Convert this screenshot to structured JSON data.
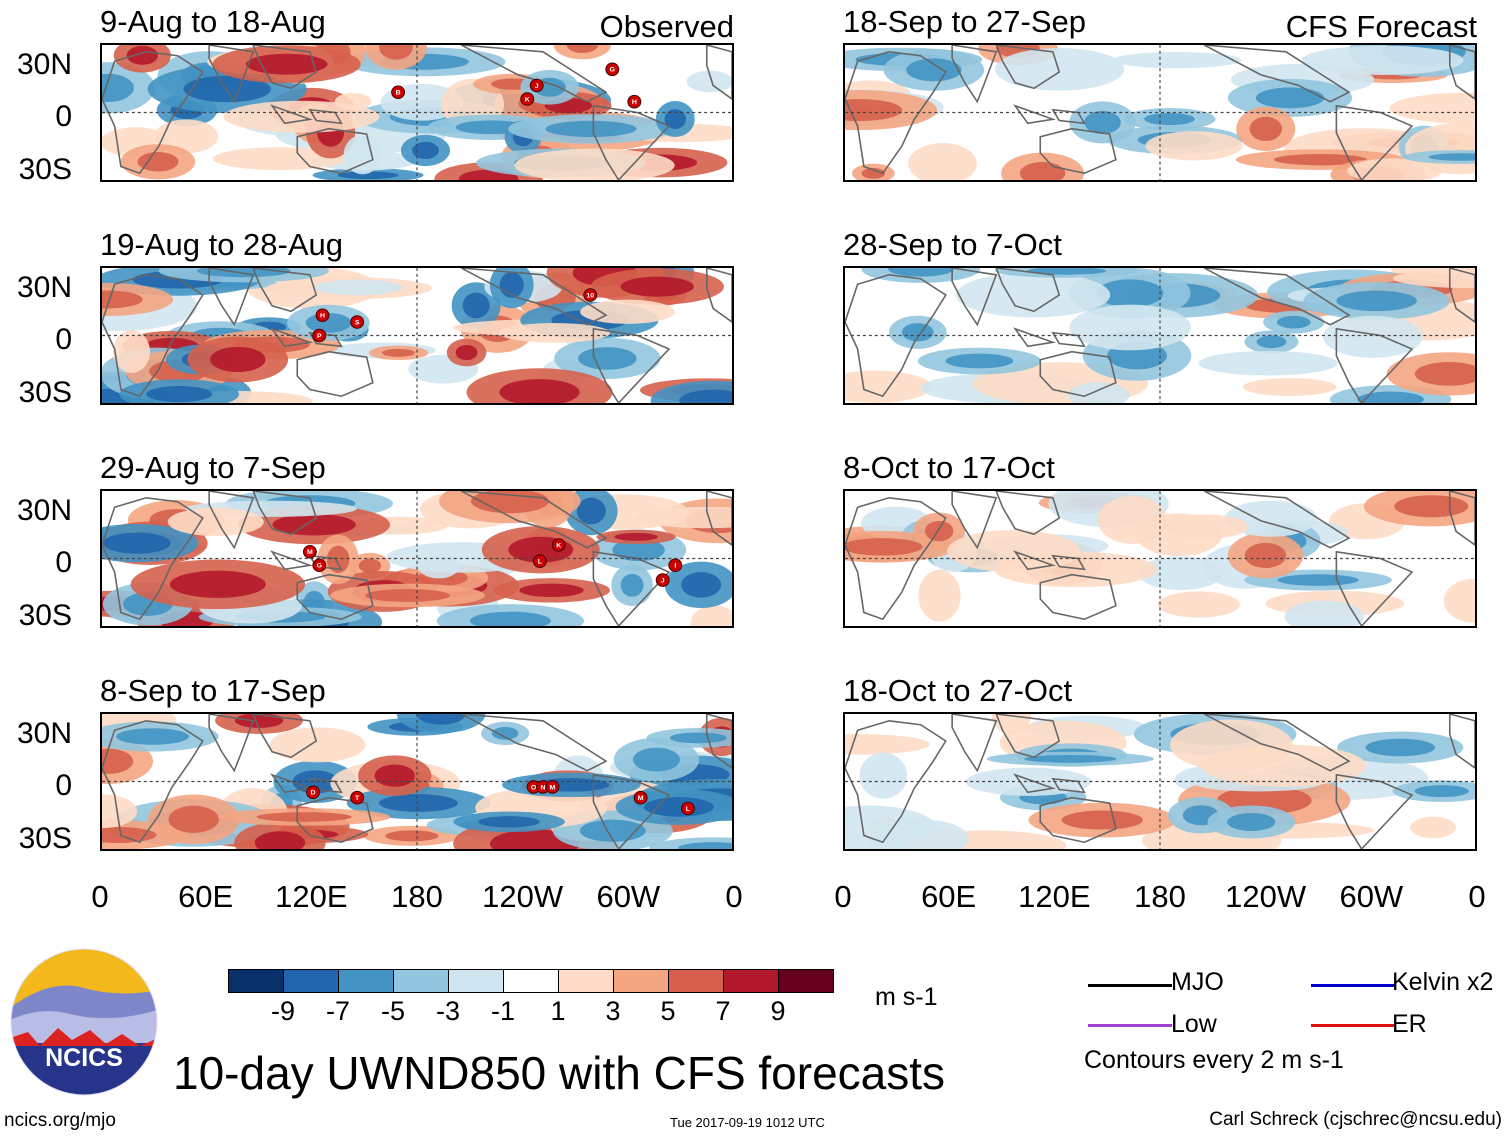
{
  "panels": [
    {
      "title": "9-Aug to 18-Aug",
      "tag": "Observed",
      "storms": [
        [
          "B",
          0.47,
          0.35
        ],
        [
          "K",
          0.675,
          0.4
        ],
        [
          "J",
          0.69,
          0.3
        ],
        [
          "G",
          0.81,
          0.18
        ],
        [
          "H",
          0.845,
          0.42
        ]
      ]
    },
    {
      "title": "19-Aug to 28-Aug",
      "tag": "",
      "storms": [
        [
          "H",
          0.35,
          0.35
        ],
        [
          "P",
          0.345,
          0.5
        ],
        [
          "S",
          0.405,
          0.4
        ],
        [
          "10",
          0.775,
          0.2
        ]
      ]
    },
    {
      "title": "29-Aug to 7-Sep",
      "tag": "",
      "storms": [
        [
          "M",
          0.33,
          0.45
        ],
        [
          "G",
          0.345,
          0.55
        ],
        [
          "L",
          0.695,
          0.52
        ],
        [
          "K",
          0.725,
          0.4
        ],
        [
          "J",
          0.89,
          0.66
        ],
        [
          "I",
          0.91,
          0.55
        ]
      ]
    },
    {
      "title": "8-Sep to 17-Sep",
      "tag": "",
      "storms": [
        [
          "D",
          0.335,
          0.58
        ],
        [
          "T",
          0.405,
          0.62
        ],
        [
          "O",
          0.685,
          0.54
        ],
        [
          "N",
          0.7,
          0.54
        ],
        [
          "M",
          0.715,
          0.54
        ],
        [
          "M",
          0.855,
          0.62
        ],
        [
          "L",
          0.93,
          0.7
        ]
      ]
    },
    {
      "title": "18-Sep to 27-Sep",
      "tag": "CFS Forecast",
      "storms": []
    },
    {
      "title": "28-Sep to 7-Oct",
      "tag": "",
      "storms": []
    },
    {
      "title": "8-Oct to 17-Oct",
      "tag": "",
      "storms": []
    },
    {
      "title": "18-Oct to 27-Oct",
      "tag": "",
      "storms": []
    }
  ],
  "lat_labels": [
    "30N",
    "0",
    "30S"
  ],
  "lon_labels": [
    "0",
    "60E",
    "120E",
    "180",
    "120W",
    "60W",
    "0"
  ],
  "colorbar": {
    "colors": [
      "#08306b",
      "#2166ac",
      "#4393c3",
      "#92c5de",
      "#d1e5f0",
      "#ffffff",
      "#fddbc7",
      "#f4a582",
      "#d6604d",
      "#b2182b",
      "#67001f"
    ],
    "ticks": [
      "-9",
      "-7",
      "-5",
      "-3",
      "-1",
      "1",
      "3",
      "5",
      "7",
      "9"
    ],
    "unit": "m s-1"
  },
  "legend": {
    "items": [
      {
        "label": "MJO",
        "color": "#000000"
      },
      {
        "label": "Kelvin x2",
        "color": "#0000cc"
      },
      {
        "label": "Low",
        "color": "#a040d0"
      },
      {
        "label": "ER",
        "color": "#e01010"
      }
    ],
    "contours": "Contours every 2 m s-1"
  },
  "logo_text": "NCICS",
  "main_title": "10-day UWND850 with CFS forecasts",
  "footer": {
    "url": "ncics.org/mjo",
    "timestamp": "Tue 2017-09-19 1012 UTC",
    "credit": "Carl Schreck (cjschrec@ncsu.edu)"
  }
}
